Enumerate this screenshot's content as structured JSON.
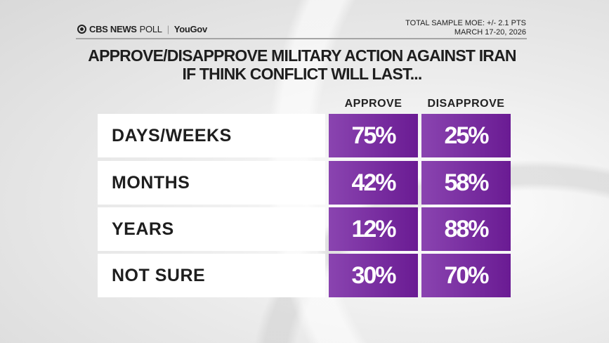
{
  "brand": {
    "network": "CBS NEWS",
    "poll": "POLL",
    "partner": "YouGov"
  },
  "meta": {
    "moe": "TOTAL SAMPLE MOE: +/- 2.1 PTS",
    "dates": "MARCH 17-20, 2026"
  },
  "chart_data": {
    "type": "table",
    "title_line1": "APPROVE/DISAPPROVE MILITARY ACTION AGAINST IRAN",
    "title_line2": "IF THINK CONFLICT WILL LAST...",
    "columns": [
      "APPROVE",
      "DISAPPROVE"
    ],
    "rows": [
      {
        "label": "DAYS/WEEKS",
        "values": [
          "75%",
          "25%"
        ]
      },
      {
        "label": "MONTHS",
        "values": [
          "42%",
          "58%"
        ]
      },
      {
        "label": "YEARS",
        "values": [
          "12%",
          "88%"
        ]
      },
      {
        "label": "NOT SURE",
        "values": [
          "30%",
          "70%"
        ]
      }
    ],
    "colors": {
      "cell": "#7a2fa3",
      "label_bg": "#ffffff"
    }
  }
}
